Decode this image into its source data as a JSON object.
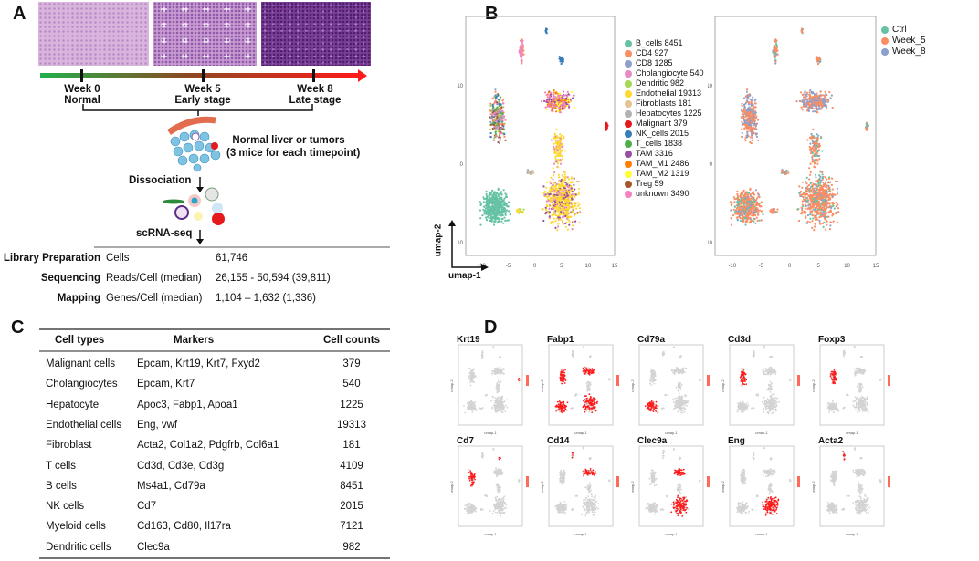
{
  "panel_labels": {
    "a": "A",
    "b": "B",
    "c": "C",
    "d": "D"
  },
  "panelA": {
    "timeline": [
      {
        "week": "Week 0",
        "stage": "Normal"
      },
      {
        "week": "Week 5",
        "stage": "Early stage"
      },
      {
        "week": "Week 8",
        "stage": "Late stage"
      }
    ],
    "sample_note_1": "Normal liver or tumors",
    "sample_note_2": "(3 mice for each timepoint)",
    "step_dissociation": "Dissociation",
    "step_scrnaseq": "scRNA-seq",
    "stats": [
      {
        "stage": "Library Preparation",
        "metric": "Cells",
        "value": "61,746"
      },
      {
        "stage": "Sequencing",
        "metric": "Reads/Cell (median)",
        "value": "26,155 - 50,594 (39,811)"
      },
      {
        "stage": "Mapping",
        "metric": "Genes/Cell (median)",
        "value": "1,104 – 1,632 (1,336)"
      }
    ]
  },
  "panelC": {
    "headers": [
      "Cell types",
      "Markers",
      "Cell counts"
    ],
    "rows": [
      [
        "Malignant cells",
        "Epcam, Krt19, Krt7, Fxyd2",
        "379"
      ],
      [
        "Cholangiocytes",
        "Epcam, Krt7",
        "540"
      ],
      [
        "Hepatocyte",
        "Apoc3, Fabp1, Apoa1",
        "1225"
      ],
      [
        "Endothelial cells",
        "Eng, vwf",
        "19313"
      ],
      [
        "Fibroblast",
        "Acta2, Col1a2, Pdgfrb, Col6a1",
        "181"
      ],
      [
        "T cells",
        "Cd3d, Cd3e, Cd3g",
        "4109"
      ],
      [
        "B cells",
        "Ms4a1, Cd79a",
        "8451"
      ],
      [
        "NK cells",
        "Cd7",
        "2015"
      ],
      [
        "Myeloid cells",
        "Cd163, Cd80, Il17ra",
        "7121"
      ],
      [
        "Dendritic cells",
        "Clec9a",
        "982"
      ]
    ]
  },
  "chart_data": [
    {
      "type": "scatter",
      "title": "",
      "xlabel": "umap-1",
      "ylabel": "umap-2",
      "xticks": [
        "-10",
        "-5",
        "0",
        "5",
        "10",
        "15"
      ],
      "yticks": [
        "10",
        "0",
        "-10"
      ],
      "xlim": [
        -13,
        15
      ],
      "ylim": [
        -12,
        19
      ],
      "grid": false,
      "legend_placement": "right",
      "legend": [
        {
          "label": "B_cells 8451",
          "color": "#66c2a5"
        },
        {
          "label": "CD4 927",
          "color": "#fc8d62"
        },
        {
          "label": "CD8 1285",
          "color": "#8da0cb"
        },
        {
          "label": "Cholangiocyte 540",
          "color": "#e78ac3"
        },
        {
          "label": "Dendritic 982",
          "color": "#a6d854"
        },
        {
          "label": "Endothelial 19313",
          "color": "#ffd92f"
        },
        {
          "label": "Fibroblasts 181",
          "color": "#e5c494"
        },
        {
          "label": "Hepatocytes 1225",
          "color": "#b3b3b3"
        },
        {
          "label": "Malignant 379",
          "color": "#e41a1c"
        },
        {
          "label": "NK_cells 2015",
          "color": "#377eb8"
        },
        {
          "label": "T_cells 1838",
          "color": "#4daf4a"
        },
        {
          "label": "TAM 3316",
          "color": "#984ea3"
        },
        {
          "label": "TAM_M1 2486",
          "color": "#ff7f00"
        },
        {
          "label": "TAM_M2 1319",
          "color": "#ffff33"
        },
        {
          "label": "Treg 59",
          "color": "#a65628"
        },
        {
          "label": "unknown 3490",
          "color": "#f781bf"
        }
      ]
    },
    {
      "type": "scatter",
      "title": "",
      "xticks": [
        "-10",
        "-5",
        "0",
        "5",
        "10",
        "15"
      ],
      "yticks": [
        "10",
        "0",
        "-10"
      ],
      "xlim": [
        -13,
        15
      ],
      "ylim": [
        -12,
        19
      ],
      "grid": false,
      "legend_placement": "right",
      "legend": [
        {
          "label": "Ctrl",
          "color": "#66c2a5"
        },
        {
          "label": "Week_5",
          "color": "#fc8d62"
        },
        {
          "label": "Week_8",
          "color": "#8da0cb"
        }
      ]
    },
    {
      "type": "scatter",
      "subplots": [
        "Krt19",
        "Fabp1",
        "Cd79a",
        "Cd3d",
        "Foxp3",
        "Cd7",
        "Cd14",
        "Clec9a",
        "Eng",
        "Acta2"
      ],
      "xlabel": "umap-1",
      "ylabel": "umap-2",
      "low_color": "#d3d3d3",
      "high_color": "#ff0000"
    }
  ]
}
